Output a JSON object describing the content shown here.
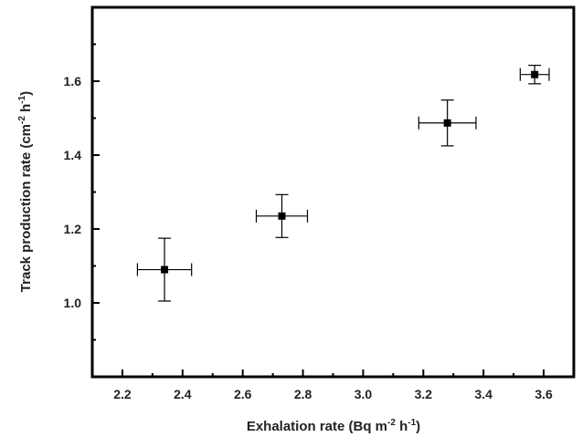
{
  "chart_data": {
    "type": "scatter",
    "x_axis": {
      "label_main": "Exhalation rate (Bq m",
      "label_exp1": "-2",
      "label_mid": " h",
      "label_exp2": "-1",
      "label_end": ")",
      "range": [
        2.1,
        3.7
      ],
      "major_ticks": [
        2.2,
        2.4,
        2.6,
        2.8,
        3.0,
        3.2,
        3.4,
        3.6
      ],
      "tick_labels": [
        "2.2",
        "2.4",
        "2.6",
        "2.8",
        "3.0",
        "3.2",
        "3.4",
        "3.6"
      ],
      "minor_ticks": [
        2.1,
        2.3,
        2.5,
        2.7,
        2.9,
        3.1,
        3.3,
        3.5,
        3.7
      ]
    },
    "y_axis": {
      "label_main": "Track production rate (cm",
      "label_exp1": "-2",
      "label_mid": " h",
      "label_exp2": "-1",
      "label_end": ")",
      "range": [
        0.8,
        1.8
      ],
      "major_ticks": [
        1.0,
        1.2,
        1.4,
        1.6
      ],
      "tick_labels": [
        "1.0",
        "1.2",
        "1.4",
        "1.6"
      ],
      "minor_ticks": [
        0.9,
        1.1,
        1.3,
        1.5,
        1.7
      ]
    },
    "points": [
      {
        "x": 2.34,
        "y": 1.09,
        "xerr": 0.09,
        "yerr": 0.085
      },
      {
        "x": 2.73,
        "y": 1.235,
        "xerr": 0.085,
        "yerr": 0.058
      },
      {
        "x": 3.28,
        "y": 1.487,
        "xerr": 0.095,
        "yerr": 0.062
      },
      {
        "x": 3.57,
        "y": 1.618,
        "xerr": 0.048,
        "yerr": 0.025
      }
    ],
    "marker": "square",
    "colors": {
      "marker": "#000000",
      "frame": "#000000",
      "text": "#222222"
    },
    "grid": false,
    "legend": "none"
  }
}
